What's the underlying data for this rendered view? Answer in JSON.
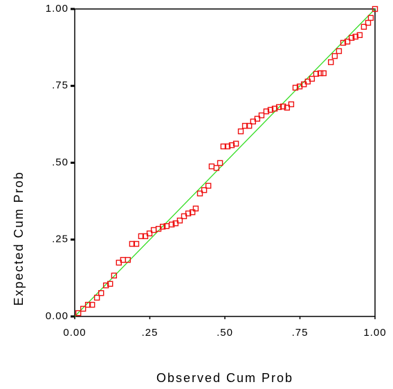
{
  "chart_data": {
    "type": "scatter",
    "xlabel": "Observed Cum Prob",
    "ylabel": "Expected Cum Prob",
    "xlim": [
      0,
      1
    ],
    "ylim": [
      0,
      1
    ],
    "xticks": [
      {
        "value": 0,
        "label": "0.00"
      },
      {
        "value": 0.25,
        "label": ".25"
      },
      {
        "value": 0.5,
        "label": ".50"
      },
      {
        "value": 0.75,
        "label": ".75"
      },
      {
        "value": 1,
        "label": "1.00"
      }
    ],
    "yticks": [
      {
        "value": 0,
        "label": "0.00"
      },
      {
        "value": 0.25,
        "label": ".25"
      },
      {
        "value": 0.5,
        "label": ".50"
      },
      {
        "value": 0.75,
        "label": ".75"
      },
      {
        "value": 1,
        "label": "1.00"
      }
    ],
    "reference_line_color": "#33dd22",
    "series": [
      {
        "color": "#ee1111",
        "x": [
          0.012,
          0.028,
          0.044,
          0.058,
          0.074,
          0.088,
          0.104,
          0.118,
          0.131,
          0.147,
          0.161,
          0.177,
          0.191,
          0.205,
          0.221,
          0.235,
          0.249,
          0.263,
          0.279,
          0.293,
          0.306,
          0.323,
          0.336,
          0.35,
          0.364,
          0.378,
          0.392,
          0.403,
          0.417,
          0.431,
          0.445,
          0.456,
          0.472,
          0.484,
          0.495,
          0.509,
          0.523,
          0.537,
          0.553,
          0.567,
          0.581,
          0.594,
          0.608,
          0.622,
          0.638,
          0.652,
          0.666,
          0.68,
          0.694,
          0.707,
          0.721,
          0.735,
          0.749,
          0.763,
          0.776,
          0.79,
          0.804,
          0.818,
          0.829,
          0.853,
          0.866,
          0.88,
          0.894,
          0.908,
          0.922,
          0.935,
          0.949,
          0.963,
          0.977,
          0.986,
          1.0
        ],
        "values": [
          0.011,
          0.025,
          0.038,
          0.038,
          0.061,
          0.076,
          0.101,
          0.106,
          0.133,
          0.175,
          0.184,
          0.184,
          0.236,
          0.236,
          0.261,
          0.261,
          0.27,
          0.281,
          0.285,
          0.292,
          0.294,
          0.299,
          0.303,
          0.312,
          0.326,
          0.335,
          0.339,
          0.351,
          0.4,
          0.411,
          0.425,
          0.488,
          0.483,
          0.499,
          0.553,
          0.553,
          0.557,
          0.562,
          0.602,
          0.62,
          0.62,
          0.634,
          0.643,
          0.654,
          0.667,
          0.672,
          0.676,
          0.681,
          0.683,
          0.679,
          0.69,
          0.744,
          0.748,
          0.755,
          0.764,
          0.773,
          0.789,
          0.791,
          0.791,
          0.827,
          0.847,
          0.863,
          0.89,
          0.894,
          0.906,
          0.91,
          0.915,
          0.942,
          0.955,
          0.971,
          1.0
        ]
      }
    ]
  }
}
